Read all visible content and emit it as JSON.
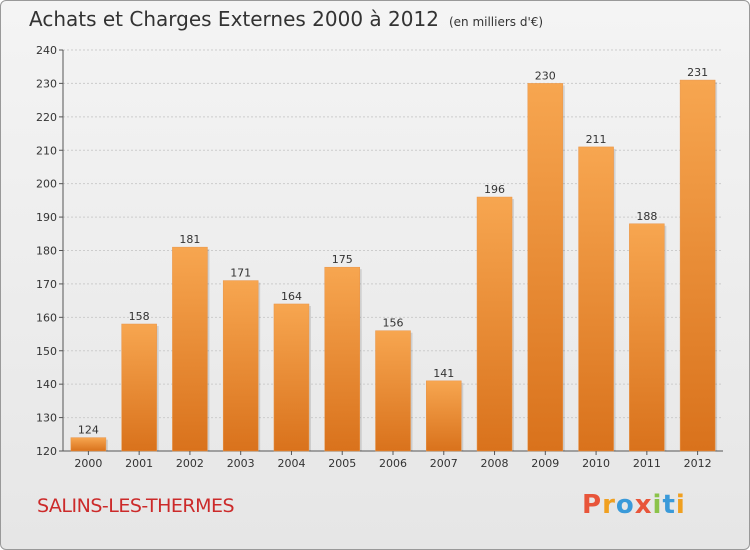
{
  "header": {
    "title": "Achats et Charges Externes 2000 à 2012",
    "subtitle": "(en milliers d'€)"
  },
  "footer": {
    "location": "SALINS-LES-THERMES",
    "logo_text": "Proxiti",
    "logo_colors": [
      "#e8553a",
      "#f0a020",
      "#3a9ad9",
      "#e8553a",
      "#8bc34a",
      "#3a9ad9",
      "#f0a020"
    ]
  },
  "colors": {
    "bar_light": "#f7a650",
    "bar_dark": "#d9721c",
    "grid": "#cccccc",
    "axis": "#555555"
  },
  "chart_data": {
    "type": "bar",
    "title": "Achats et Charges Externes 2000 à 2012",
    "subtitle": "(en milliers d'€)",
    "categories": [
      "2000",
      "2001",
      "2002",
      "2003",
      "2004",
      "2005",
      "2006",
      "2007",
      "2008",
      "2009",
      "2010",
      "2011",
      "2012"
    ],
    "values": [
      124,
      158,
      181,
      171,
      164,
      175,
      156,
      141,
      196,
      230,
      211,
      188,
      231
    ],
    "ylim": [
      120,
      240
    ],
    "yticks": [
      120,
      130,
      140,
      150,
      160,
      170,
      180,
      190,
      200,
      210,
      220,
      230,
      240
    ],
    "xlabel": "",
    "ylabel": "",
    "grid": true
  }
}
